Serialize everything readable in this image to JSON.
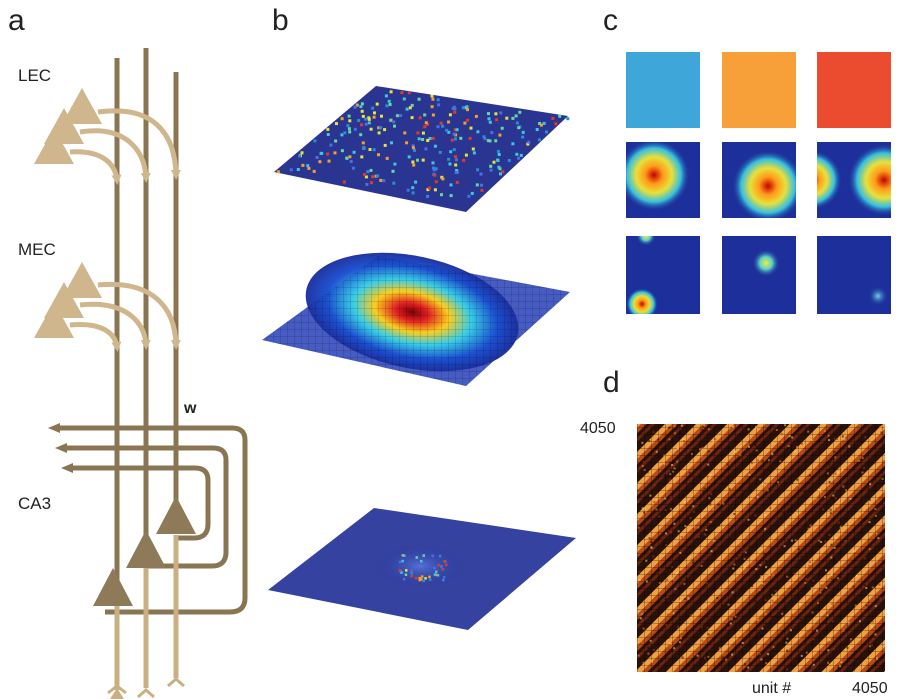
{
  "panels": {
    "a": {
      "letter": "a",
      "regions": [
        "LEC",
        "MEC",
        "CA3"
      ],
      "weight_label": "w"
    },
    "b": {
      "letter": "b"
    },
    "c": {
      "letter": "c",
      "swatch_colors": [
        "#3ea6d8",
        "#f7a03a",
        "#eb4b2e"
      ]
    },
    "d": {
      "letter": "d",
      "y_max_label": "4050",
      "x_label": "unit #",
      "x_max_label": "4050"
    }
  },
  "colors": {
    "ec_neuron": "#cfb68c",
    "ca3_neuron": "#8e7a58",
    "axon": "#8a7552",
    "recurrent": "#8a7552"
  }
}
